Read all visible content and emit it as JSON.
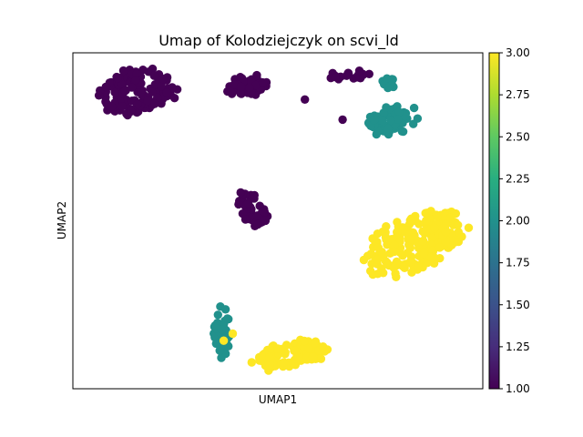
{
  "chart_data": {
    "type": "scatter",
    "title": "Umap of Kolodziejczyk on scvi_ld",
    "xlabel": "UMAP1",
    "ylabel": "UMAP2",
    "xlim": [
      0,
      1
    ],
    "ylim": [
      0,
      1
    ],
    "colorbar": {
      "colormap": "viridis",
      "min": 1.0,
      "max": 3.0,
      "ticks": [
        "1.00",
        "1.25",
        "1.50",
        "1.75",
        "2.00",
        "2.25",
        "2.50",
        "2.75",
        "3.00"
      ]
    },
    "colors": {
      "level_1": "#440154",
      "level_2": "#21918c",
      "level_3": "#fde725"
    },
    "clusters": [
      {
        "value": 1,
        "shape": "ellipse",
        "cx": 0.156,
        "cy": 0.117,
        "rx": 0.107,
        "ry": 0.076,
        "rot": -15,
        "n": 130,
        "seed": 11
      },
      {
        "value": 1,
        "shape": "ellipse",
        "cx": 0.424,
        "cy": 0.096,
        "rx": 0.055,
        "ry": 0.034,
        "rot": -10,
        "n": 60,
        "seed": 12
      },
      {
        "value": 1,
        "shape": "ellipse",
        "cx": 0.7,
        "cy": 0.066,
        "rx": 0.042,
        "ry": 0.015,
        "rot": 0,
        "n": 14,
        "seed": 13
      },
      {
        "value": 1,
        "shape": "ellipse",
        "cx": 0.64,
        "cy": 0.068,
        "rx": 0.022,
        "ry": 0.014,
        "rot": 0,
        "n": 8,
        "seed": 19
      },
      {
        "value": 1,
        "shape": "ellipse",
        "cx": 0.437,
        "cy": 0.463,
        "rx": 0.032,
        "ry": 0.075,
        "rot": -25,
        "n": 50,
        "seed": 14
      },
      {
        "value": 2,
        "shape": "ellipse",
        "cx": 0.777,
        "cy": 0.2,
        "rx": 0.075,
        "ry": 0.046,
        "rot": -20,
        "n": 70,
        "seed": 21
      },
      {
        "value": 2,
        "shape": "ellipse",
        "cx": 0.77,
        "cy": 0.093,
        "rx": 0.022,
        "ry": 0.02,
        "rot": 0,
        "n": 12,
        "seed": 22
      },
      {
        "value": 2,
        "shape": "ellipse",
        "cx": 0.363,
        "cy": 0.827,
        "rx": 0.022,
        "ry": 0.12,
        "rot": 0,
        "n": 40,
        "seed": 23
      },
      {
        "value": 3,
        "shape": "ellipse",
        "cx": 0.832,
        "cy": 0.564,
        "rx": 0.155,
        "ry": 0.09,
        "rot": -33,
        "n": 210,
        "seed": 31
      },
      {
        "value": 3,
        "shape": "ellipse",
        "cx": 0.536,
        "cy": 0.897,
        "rx": 0.105,
        "ry": 0.045,
        "rot": -15,
        "n": 95,
        "seed": 32
      }
    ],
    "outliers": [
      {
        "value": 1,
        "x": 0.658,
        "y": 0.199
      },
      {
        "value": 1,
        "x": 0.566,
        "y": 0.139
      },
      {
        "value": 3,
        "x": 0.368,
        "y": 0.857
      },
      {
        "value": 3,
        "x": 0.39,
        "y": 0.836
      }
    ]
  }
}
